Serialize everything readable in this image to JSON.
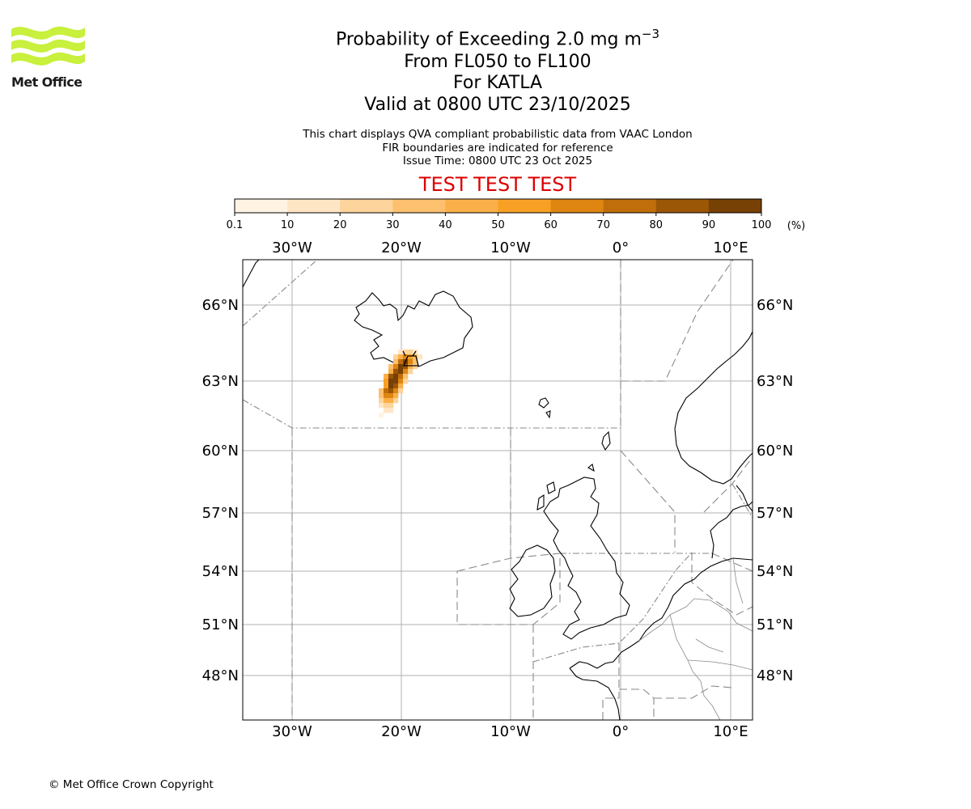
{
  "logo": {
    "name": "Met Office"
  },
  "title": {
    "line1_prefix": "Probability of Exceeding 2.0 mg m",
    "line1_exponent": "−3",
    "line2": "From FL050 to FL100",
    "line3": "For KATLA",
    "line4": "Valid at 0800 UTC 23/10/2025"
  },
  "subtitle": {
    "line1": "This chart displays QVA compliant probabilistic data from VAAC London",
    "line2": "FIR boundaries are indicated for reference",
    "line3": "Issue Time: 0800 UTC 23 Oct 2025"
  },
  "test_banner": "TEST TEST TEST",
  "colorbar": {
    "ticks": [
      "0.1",
      "10",
      "20",
      "30",
      "40",
      "50",
      "60",
      "70",
      "80",
      "90",
      "100"
    ],
    "unit": "(%)",
    "colors": [
      "#fff4e4",
      "#fee6c5",
      "#fdd49b",
      "#fcc06e",
      "#fbaf48",
      "#f8a025",
      "#de8512",
      "#c06e0b",
      "#9b5606",
      "#774005"
    ]
  },
  "map": {
    "lon_labels": [
      "30°W",
      "20°W",
      "10°W",
      "0°",
      "10°E"
    ],
    "lat_labels": [
      "66°N",
      "63°N",
      "60°N",
      "57°N",
      "54°N",
      "51°N",
      "48°N"
    ]
  },
  "copyright": "© Met Office Crown Copyright"
}
